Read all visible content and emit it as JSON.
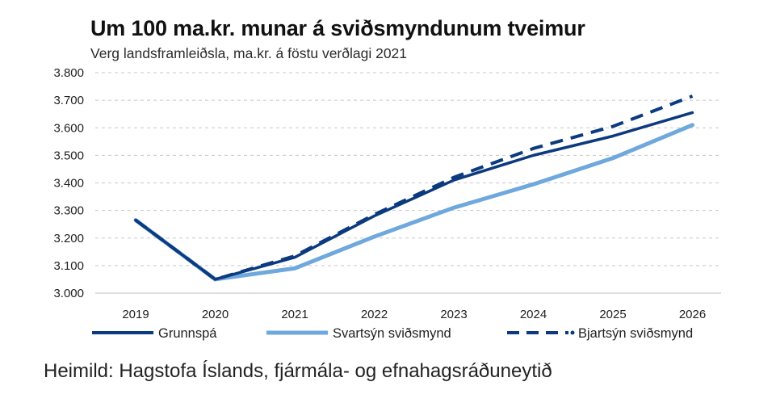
{
  "chart_data": {
    "type": "line",
    "title": "Um 100 ma.kr. munar á sviðsmyndunum tveimur",
    "subtitle": "Verg landsframleiðsla, ma.kr. á föstu verðlagi 2021",
    "xlabel": "",
    "ylabel": "",
    "x": [
      "2019",
      "2020",
      "2021",
      "2022",
      "2023",
      "2024",
      "2025",
      "2026"
    ],
    "y_ticks": [
      "3.000",
      "3.100",
      "3.200",
      "3.300",
      "3.400",
      "3.500",
      "3.600",
      "3.700",
      "3.800"
    ],
    "ylim": [
      3000,
      3800
    ],
    "grid": true,
    "legend_position": "bottom",
    "series": [
      {
        "name": "Grunnspá",
        "color": "#0b3a7e",
        "style": "solid",
        "values": [
          3265,
          3050,
          3130,
          3280,
          3410,
          3500,
          3570,
          3655
        ]
      },
      {
        "name": "Svartsýn sviðsmynd",
        "color": "#6fa8dc",
        "style": "solid",
        "values": [
          3265,
          3050,
          3090,
          3205,
          3310,
          3395,
          3490,
          3610
        ]
      },
      {
        "name": "Bjartsýn sviðsmynd",
        "color": "#0b3a7e",
        "style": "dashed",
        "values": [
          3265,
          3050,
          3135,
          3285,
          3420,
          3525,
          3605,
          3715
        ]
      }
    ]
  },
  "source": "Heimild: Hagstofa Íslands, fjármála- og efnahagsráðuneytið"
}
